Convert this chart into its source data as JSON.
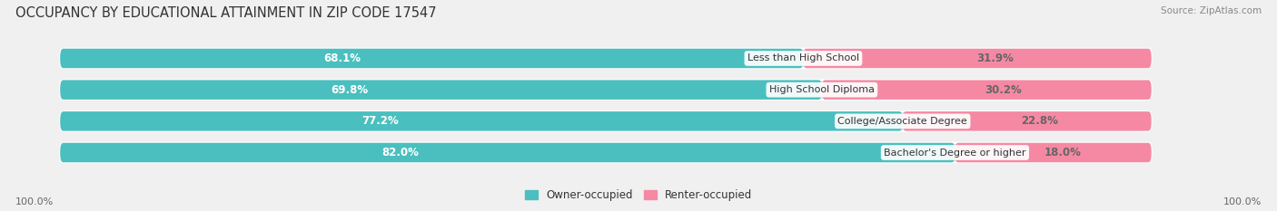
{
  "title": "OCCUPANCY BY EDUCATIONAL ATTAINMENT IN ZIP CODE 17547",
  "source": "Source: ZipAtlas.com",
  "categories": [
    "Less than High School",
    "High School Diploma",
    "College/Associate Degree",
    "Bachelor's Degree or higher"
  ],
  "owner_pct": [
    68.1,
    69.8,
    77.2,
    82.0
  ],
  "renter_pct": [
    31.9,
    30.2,
    22.8,
    18.0
  ],
  "owner_color": "#4bbfbf",
  "renter_color": "#f589a3",
  "bg_color": "#f0f0f0",
  "bar_bg_color": "#e0e0e0",
  "bar_height": 0.62,
  "title_fontsize": 10.5,
  "label_fontsize": 8.5,
  "axis_label_fontsize": 8,
  "legend_fontsize": 8.5,
  "x_left_label": "100.0%",
  "x_right_label": "100.0%",
  "total_bar_width": 100.0,
  "bar_gap": 0.12
}
